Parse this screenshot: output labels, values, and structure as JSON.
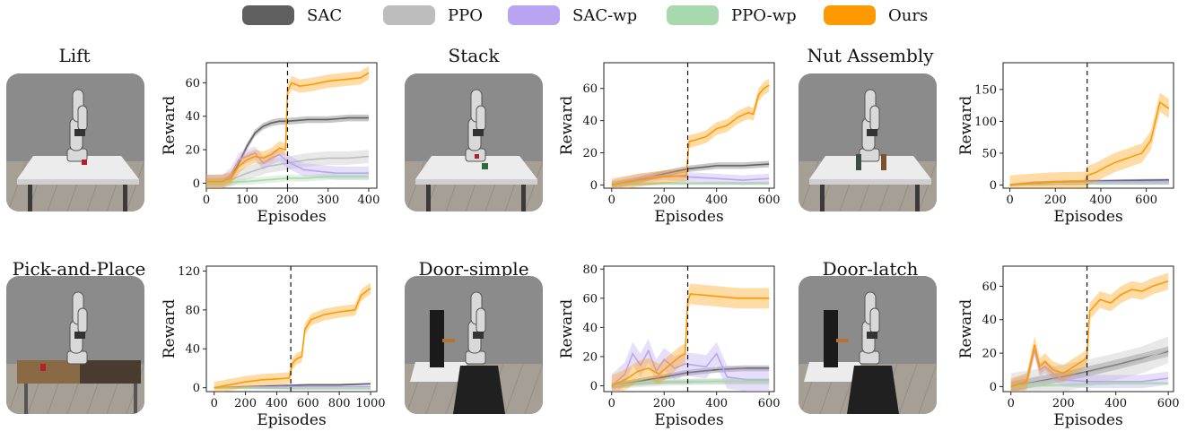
{
  "legend": {
    "items": [
      {
        "label": "SAC",
        "color": "#5f5f5f"
      },
      {
        "label": "PPO",
        "color": "#bdbdbd"
      },
      {
        "label": "SAC-wp",
        "color": "#b9a4f2"
      },
      {
        "label": "PPO-wp",
        "color": "#a8d8ad"
      },
      {
        "label": "Ours",
        "color": "#ff9900"
      }
    ]
  },
  "tasks": [
    {
      "title": "Lift",
      "scene": "table"
    },
    {
      "title": "Stack",
      "scene": "table-two-cubes"
    },
    {
      "title": "Nut Assembly",
      "scene": "table-pegs"
    },
    {
      "title": "Pick-and-Place",
      "scene": "bins"
    },
    {
      "title": "Door-simple",
      "scene": "door"
    },
    {
      "title": "Door-latch",
      "scene": "door"
    }
  ],
  "chart_data": [
    {
      "type": "line",
      "task": "Lift",
      "xlabel": "Episodes",
      "ylabel": "Reward",
      "xlim": [
        0,
        420
      ],
      "ylim": [
        -3,
        72
      ],
      "xticks": [
        0,
        100,
        200,
        300,
        400
      ],
      "yticks": [
        0,
        20,
        40,
        60
      ],
      "vline": 200,
      "series": [
        {
          "name": "SAC",
          "x": [
            0,
            40,
            60,
            80,
            100,
            120,
            140,
            160,
            180,
            200,
            250,
            300,
            350,
            400
          ],
          "y": [
            1,
            1,
            3,
            12,
            22,
            30,
            34,
            36,
            37,
            37,
            38,
            38,
            39,
            39
          ],
          "band": 2
        },
        {
          "name": "PPO",
          "x": [
            0,
            60,
            100,
            150,
            200,
            250,
            300,
            350,
            400
          ],
          "y": [
            1,
            2,
            6,
            10,
            12,
            14,
            15,
            15,
            16
          ],
          "band": 4
        },
        {
          "name": "SAC-wp",
          "x": [
            0,
            40,
            60,
            80,
            100,
            120,
            140,
            160,
            180,
            200,
            240,
            280,
            320,
            360,
            400
          ],
          "y": [
            1,
            1,
            5,
            14,
            16,
            18,
            12,
            15,
            17,
            13,
            8,
            7,
            6,
            6,
            6
          ],
          "band": 4
        },
        {
          "name": "PPO-wp",
          "x": [
            0,
            100,
            150,
            200,
            250,
            300,
            350,
            400
          ],
          "y": [
            0,
            1,
            2,
            3,
            3,
            4,
            4,
            4
          ],
          "band": 2
        },
        {
          "name": "Ours",
          "x": [
            0,
            40,
            60,
            80,
            100,
            120,
            140,
            160,
            180,
            195,
            200,
            210,
            230,
            260,
            300,
            340,
            380,
            400
          ],
          "y": [
            1,
            1,
            3,
            10,
            14,
            16,
            15,
            17,
            21,
            20,
            55,
            60,
            58,
            59,
            61,
            62,
            63,
            66
          ],
          "band": 4
        }
      ]
    },
    {
      "type": "line",
      "task": "Stack",
      "xlabel": "Episodes",
      "ylabel": "Reward",
      "xlim": [
        -30,
        620
      ],
      "ylim": [
        -2,
        76
      ],
      "xticks": [
        0,
        200,
        400,
        600
      ],
      "yticks": [
        0,
        20,
        40,
        60
      ],
      "vline": 290,
      "series": [
        {
          "name": "SAC",
          "x": [
            0,
            100,
            200,
            290,
            400,
            500,
            600
          ],
          "y": [
            0,
            3,
            7,
            10,
            12,
            12,
            13
          ],
          "band": 2
        },
        {
          "name": "PPO",
          "x": [
            0,
            200,
            400,
            600
          ],
          "y": [
            0,
            1,
            1,
            1
          ],
          "band": 1
        },
        {
          "name": "SAC-wp",
          "x": [
            0,
            100,
            200,
            290,
            400,
            500,
            600
          ],
          "y": [
            0,
            4,
            6,
            5,
            4,
            3,
            4
          ],
          "band": 3
        },
        {
          "name": "PPO-wp",
          "x": [
            0,
            200,
            400,
            600
          ],
          "y": [
            0,
            1,
            1,
            1
          ],
          "band": 1
        },
        {
          "name": "Ours",
          "x": [
            0,
            100,
            200,
            285,
            295,
            320,
            360,
            400,
            440,
            480,
            520,
            540,
            560,
            580,
            600
          ],
          "y": [
            0,
            3,
            5,
            6,
            27,
            28,
            30,
            35,
            37,
            42,
            45,
            44,
            56,
            60,
            62
          ],
          "band": 4
        }
      ]
    },
    {
      "type": "line",
      "task": "Nut Assembly",
      "xlabel": "Episodes",
      "ylabel": "Reward",
      "xlim": [
        -30,
        720
      ],
      "ylim": [
        -5,
        192
      ],
      "xticks": [
        0,
        200,
        400,
        600
      ],
      "yticks": [
        0,
        50,
        100,
        150
      ],
      "vline": 340,
      "series": [
        {
          "name": "SAC",
          "x": [
            0,
            100,
            200,
            340,
            500,
            700
          ],
          "y": [
            0,
            3,
            5,
            6,
            7,
            8
          ],
          "band": 2
        },
        {
          "name": "PPO",
          "x": [
            0,
            200,
            400,
            700
          ],
          "y": [
            0,
            1,
            2,
            2
          ],
          "band": 1
        },
        {
          "name": "SAC-wp",
          "x": [
            0,
            100,
            200,
            340,
            500,
            700
          ],
          "y": [
            0,
            4,
            5,
            5,
            5,
            5
          ],
          "band": 2
        },
        {
          "name": "PPO-wp",
          "x": [
            0,
            200,
            400,
            700
          ],
          "y": [
            0,
            1,
            2,
            2
          ],
          "band": 1
        },
        {
          "name": "Ours",
          "x": [
            0,
            100,
            200,
            330,
            340,
            380,
            420,
            460,
            500,
            540,
            580,
            620,
            640,
            660,
            700
          ],
          "y": [
            0,
            3,
            5,
            6,
            15,
            20,
            28,
            35,
            40,
            45,
            50,
            70,
            100,
            130,
            120
          ],
          "band": 15
        }
      ]
    },
    {
      "type": "line",
      "task": "Pick-and-Place",
      "xlabel": "Episodes",
      "ylabel": "Reward",
      "xlim": [
        -50,
        1040
      ],
      "ylim": [
        -4,
        125
      ],
      "xticks": [
        0,
        200,
        400,
        600,
        800,
        1000
      ],
      "yticks": [
        0,
        40,
        80,
        120
      ],
      "vline": 490,
      "series": [
        {
          "name": "SAC",
          "x": [
            0,
            200,
            400,
            600,
            800,
            1000
          ],
          "y": [
            0,
            1,
            2,
            3,
            3,
            4
          ],
          "band": 1
        },
        {
          "name": "PPO",
          "x": [
            0,
            500,
            1000
          ],
          "y": [
            0,
            1,
            1
          ],
          "band": 1
        },
        {
          "name": "SAC-wp",
          "x": [
            0,
            500,
            1000
          ],
          "y": [
            0,
            1,
            1
          ],
          "band": 1
        },
        {
          "name": "PPO-wp",
          "x": [
            0,
            500,
            1000
          ],
          "y": [
            0,
            -1,
            -1
          ],
          "band": 1
        },
        {
          "name": "Ours",
          "x": [
            0,
            100,
            200,
            300,
            400,
            480,
            500,
            530,
            560,
            580,
            620,
            700,
            800,
            900,
            940,
            980,
            1000
          ],
          "y": [
            0,
            3,
            6,
            8,
            9,
            10,
            25,
            30,
            32,
            60,
            70,
            75,
            78,
            80,
            95,
            100,
            102
          ],
          "band": 6
        }
      ]
    },
    {
      "type": "line",
      "task": "Door-simple",
      "xlabel": "Episodes",
      "ylabel": "Reward",
      "xlim": [
        -30,
        620
      ],
      "ylim": [
        -4,
        82
      ],
      "xticks": [
        0,
        200,
        400,
        600
      ],
      "yticks": [
        0,
        20,
        40,
        60,
        80
      ],
      "vline": 290,
      "series": [
        {
          "name": "SAC",
          "x": [
            0,
            100,
            200,
            290,
            400,
            500,
            600
          ],
          "y": [
            0,
            3,
            6,
            9,
            11,
            12,
            12
          ],
          "band": 2
        },
        {
          "name": "PPO",
          "x": [
            0,
            200,
            400,
            600
          ],
          "y": [
            0,
            2,
            3,
            3
          ],
          "band": 2
        },
        {
          "name": "SAC-wp",
          "x": [
            0,
            50,
            80,
            110,
            140,
            170,
            200,
            240,
            280,
            320,
            360,
            400,
            440,
            480,
            520,
            560,
            600
          ],
          "y": [
            0,
            8,
            22,
            14,
            24,
            10,
            18,
            12,
            15,
            14,
            13,
            22,
            6,
            5,
            4,
            4,
            4
          ],
          "band": 8
        },
        {
          "name": "PPO-wp",
          "x": [
            0,
            100,
            200,
            300,
            400,
            500,
            600
          ],
          "y": [
            0,
            2,
            3,
            3,
            3,
            3,
            3
          ],
          "band": 2
        },
        {
          "name": "Ours",
          "x": [
            0,
            60,
            100,
            140,
            180,
            220,
            260,
            280,
            290,
            300,
            360,
            420,
            480,
            540,
            600
          ],
          "y": [
            0,
            5,
            10,
            12,
            8,
            14,
            20,
            22,
            58,
            63,
            62,
            61,
            60,
            60,
            60
          ],
          "band": 7
        }
      ]
    },
    {
      "type": "line",
      "task": "Door-latch",
      "xlabel": "Episodes",
      "ylabel": "Reward",
      "xlim": [
        -30,
        620
      ],
      "ylim": [
        -3,
        72
      ],
      "xticks": [
        0,
        200,
        400,
        600
      ],
      "yticks": [
        0,
        20,
        40,
        60
      ],
      "vline": 290,
      "series": [
        {
          "name": "SAC",
          "x": [
            0,
            100,
            200,
            290,
            400,
            500,
            600
          ],
          "y": [
            0,
            3,
            6,
            9,
            13,
            17,
            21
          ],
          "band": 3
        },
        {
          "name": "PPO",
          "x": [
            0,
            200,
            290,
            400,
            500,
            600
          ],
          "y": [
            0,
            5,
            8,
            12,
            16,
            22
          ],
          "band": 8
        },
        {
          "name": "SAC-wp",
          "x": [
            0,
            60,
            90,
            110,
            130,
            160,
            200,
            300,
            400,
            500,
            600
          ],
          "y": [
            0,
            3,
            22,
            10,
            12,
            8,
            4,
            3,
            3,
            3,
            5
          ],
          "band": 4
        },
        {
          "name": "PPO-wp",
          "x": [
            0,
            200,
            400,
            600
          ],
          "y": [
            0,
            1,
            2,
            2
          ],
          "band": 1
        },
        {
          "name": "Ours",
          "x": [
            0,
            60,
            90,
            110,
            130,
            160,
            200,
            240,
            280,
            290,
            300,
            340,
            380,
            420,
            460,
            500,
            540,
            580,
            600
          ],
          "y": [
            0,
            3,
            25,
            12,
            15,
            10,
            8,
            12,
            16,
            18,
            45,
            52,
            50,
            55,
            58,
            57,
            60,
            62,
            63
          ],
          "band": 5
        }
      ]
    }
  ]
}
